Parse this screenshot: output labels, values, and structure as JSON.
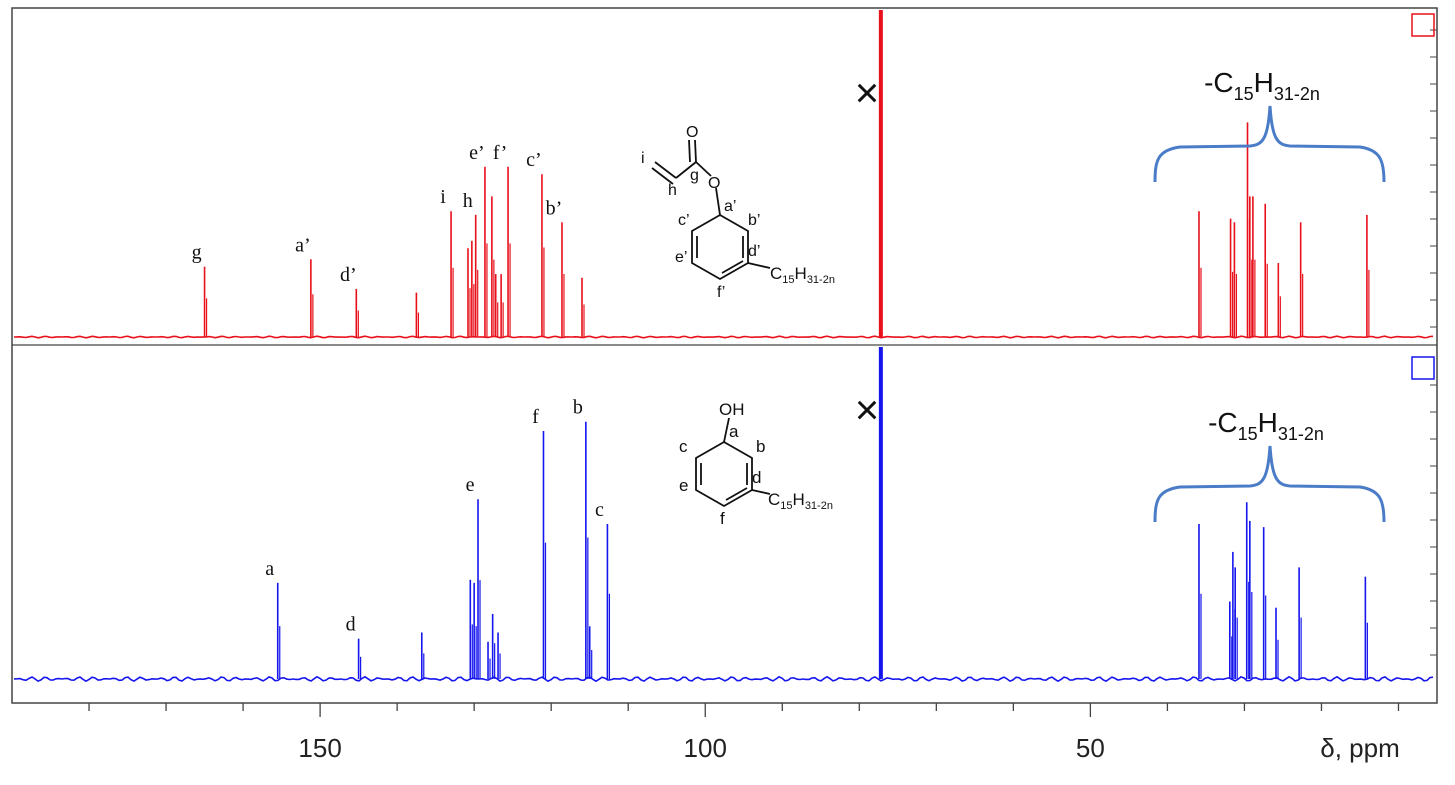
{
  "chart_data": {
    "type": "line",
    "xlabel": "δ, ppm",
    "x_axis_reversed": true,
    "xlim": [
      190,
      5
    ],
    "x_ticks": [
      150,
      100,
      50
    ],
    "x_tick_labels": [
      "150",
      "100",
      "50"
    ],
    "grid": false,
    "legend": "none",
    "series": [
      {
        "panel": "top",
        "color": "#e8101a",
        "solvent_peak_x": 77.2,
        "peaks": [
          {
            "x": 165.0,
            "y": 0.19,
            "label": "g"
          },
          {
            "x": 151.2,
            "y": 0.21,
            "label": "a’"
          },
          {
            "x": 145.3,
            "y": 0.13,
            "label": "d’"
          },
          {
            "x": 137.5,
            "y": 0.12,
            "label": ""
          },
          {
            "x": 133.0,
            "y": 0.34,
            "label": "i"
          },
          {
            "x": 130.8,
            "y": 0.24,
            "label": ""
          },
          {
            "x": 130.3,
            "y": 0.26,
            "label": ""
          },
          {
            "x": 129.8,
            "y": 0.33,
            "label": "h"
          },
          {
            "x": 128.6,
            "y": 0.46,
            "label": "e’"
          },
          {
            "x": 127.7,
            "y": 0.38,
            "label": ""
          },
          {
            "x": 127.2,
            "y": 0.17,
            "label": ""
          },
          {
            "x": 126.5,
            "y": 0.17,
            "label": ""
          },
          {
            "x": 125.6,
            "y": 0.46,
            "label": "f’"
          },
          {
            "x": 121.2,
            "y": 0.44,
            "label": "c’"
          },
          {
            "x": 118.6,
            "y": 0.31,
            "label": "b’"
          },
          {
            "x": 116.0,
            "y": 0.16,
            "label": ""
          },
          {
            "x": 35.9,
            "y": 0.34,
            "label": ""
          },
          {
            "x": 31.8,
            "y": 0.32,
            "label": ""
          },
          {
            "x": 31.3,
            "y": 0.31,
            "label": ""
          },
          {
            "x": 29.6,
            "y": 0.58,
            "label": ""
          },
          {
            "x": 29.3,
            "y": 0.38,
            "label": ""
          },
          {
            "x": 28.9,
            "y": 0.38,
            "label": ""
          },
          {
            "x": 27.3,
            "y": 0.36,
            "label": ""
          },
          {
            "x": 25.6,
            "y": 0.2,
            "label": ""
          },
          {
            "x": 22.7,
            "y": 0.31,
            "label": ""
          },
          {
            "x": 14.1,
            "y": 0.33,
            "label": ""
          }
        ]
      },
      {
        "panel": "bottom",
        "color": "#1515ee",
        "solvent_peak_x": 77.2,
        "peaks": [
          {
            "x": 155.5,
            "y": 0.31,
            "label": "a"
          },
          {
            "x": 145.0,
            "y": 0.13,
            "label": "d"
          },
          {
            "x": 136.8,
            "y": 0.15,
            "label": ""
          },
          {
            "x": 130.5,
            "y": 0.32,
            "label": ""
          },
          {
            "x": 130.0,
            "y": 0.31,
            "label": ""
          },
          {
            "x": 129.5,
            "y": 0.58,
            "label": "e"
          },
          {
            "x": 128.2,
            "y": 0.12,
            "label": ""
          },
          {
            "x": 127.6,
            "y": 0.21,
            "label": ""
          },
          {
            "x": 126.9,
            "y": 0.15,
            "label": ""
          },
          {
            "x": 121.0,
            "y": 0.8,
            "label": "f"
          },
          {
            "x": 115.5,
            "y": 0.83,
            "label": "b"
          },
          {
            "x": 115.0,
            "y": 0.17,
            "label": ""
          },
          {
            "x": 112.7,
            "y": 0.5,
            "label": "c"
          },
          {
            "x": 35.9,
            "y": 0.5,
            "label": ""
          },
          {
            "x": 31.9,
            "y": 0.25,
            "label": ""
          },
          {
            "x": 31.5,
            "y": 0.41,
            "label": ""
          },
          {
            "x": 31.2,
            "y": 0.36,
            "label": ""
          },
          {
            "x": 29.7,
            "y": 0.57,
            "label": ""
          },
          {
            "x": 29.3,
            "y": 0.51,
            "label": ""
          },
          {
            "x": 27.5,
            "y": 0.49,
            "label": ""
          },
          {
            "x": 25.9,
            "y": 0.23,
            "label": ""
          },
          {
            "x": 22.9,
            "y": 0.36,
            "label": ""
          },
          {
            "x": 14.3,
            "y": 0.33,
            "label": ""
          }
        ]
      }
    ]
  },
  "annotations": {
    "top_alkyl_bracket": {
      "prefix": "-C",
      "sub1": "15",
      "mid": "H",
      "sub2": "31-2n"
    },
    "bottom_alkyl_bracket": {
      "prefix": "-C",
      "sub1": "15",
      "mid": "H",
      "sub2": "31-2n"
    },
    "top_structure": {
      "labels": [
        "O",
        "i",
        "g",
        "h",
        "O",
        "c’",
        "a’",
        "b’",
        "d’",
        "e’",
        "f’"
      ],
      "substituent": {
        "prefix": "C",
        "sub1": "15",
        "mid": "H",
        "sub2": "31-2n"
      }
    },
    "bottom_structure": {
      "labels": [
        "OH",
        "c",
        "a",
        "b",
        "d",
        "e",
        "f"
      ],
      "substituent": {
        "prefix": "C",
        "sub1": "15",
        "mid": "H",
        "sub2": "31-2n"
      }
    },
    "cross_marker": "×"
  },
  "colors": {
    "top_spectrum": "#e8101a",
    "bottom_spectrum": "#1515ee",
    "bracket": "#4a7cc7",
    "frame": "#444444"
  }
}
